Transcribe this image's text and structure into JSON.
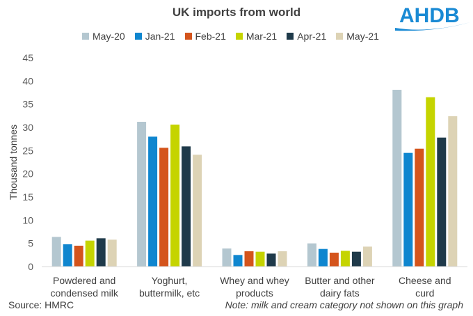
{
  "page": {
    "logo_text": "AHDB",
    "source": "Source: HMRC",
    "note": "Note: milk and cream category not shown on this graph"
  },
  "chart_data": {
    "type": "bar",
    "title": "UK imports from world",
    "xlabel": "",
    "ylabel": "Thousand tonnes",
    "ylim": [
      0,
      45
    ],
    "yticks": [
      0,
      5,
      10,
      15,
      20,
      25,
      30,
      35,
      40,
      45
    ],
    "grid": false,
    "legend_position": "top",
    "categories": [
      [
        "Powdered and",
        "condensed milk"
      ],
      [
        "Yoghurt,",
        "buttermilk, etc"
      ],
      [
        "Whey and whey",
        "products"
      ],
      [
        "Butter and other",
        "dairy fats"
      ],
      [
        "Cheese and",
        "curd"
      ]
    ],
    "series": [
      {
        "name": "May-20",
        "color": "#b4c7d0",
        "values": [
          6.4,
          31.2,
          3.9,
          5.0,
          38.1
        ]
      },
      {
        "name": "Jan-21",
        "color": "#0f86cf",
        "values": [
          4.8,
          28.0,
          2.5,
          3.8,
          24.5
        ]
      },
      {
        "name": "Feb-21",
        "color": "#d4541c",
        "values": [
          4.5,
          25.6,
          3.3,
          3.0,
          25.4
        ]
      },
      {
        "name": "Mar-21",
        "color": "#c5d400",
        "values": [
          5.6,
          30.6,
          3.2,
          3.4,
          36.5
        ]
      },
      {
        "name": "Apr-21",
        "color": "#1f3a4a",
        "values": [
          6.1,
          25.9,
          2.8,
          3.2,
          27.8
        ]
      },
      {
        "name": "May-21",
        "color": "#ddd3b5",
        "values": [
          5.8,
          24.1,
          3.3,
          4.3,
          32.4
        ]
      }
    ]
  }
}
